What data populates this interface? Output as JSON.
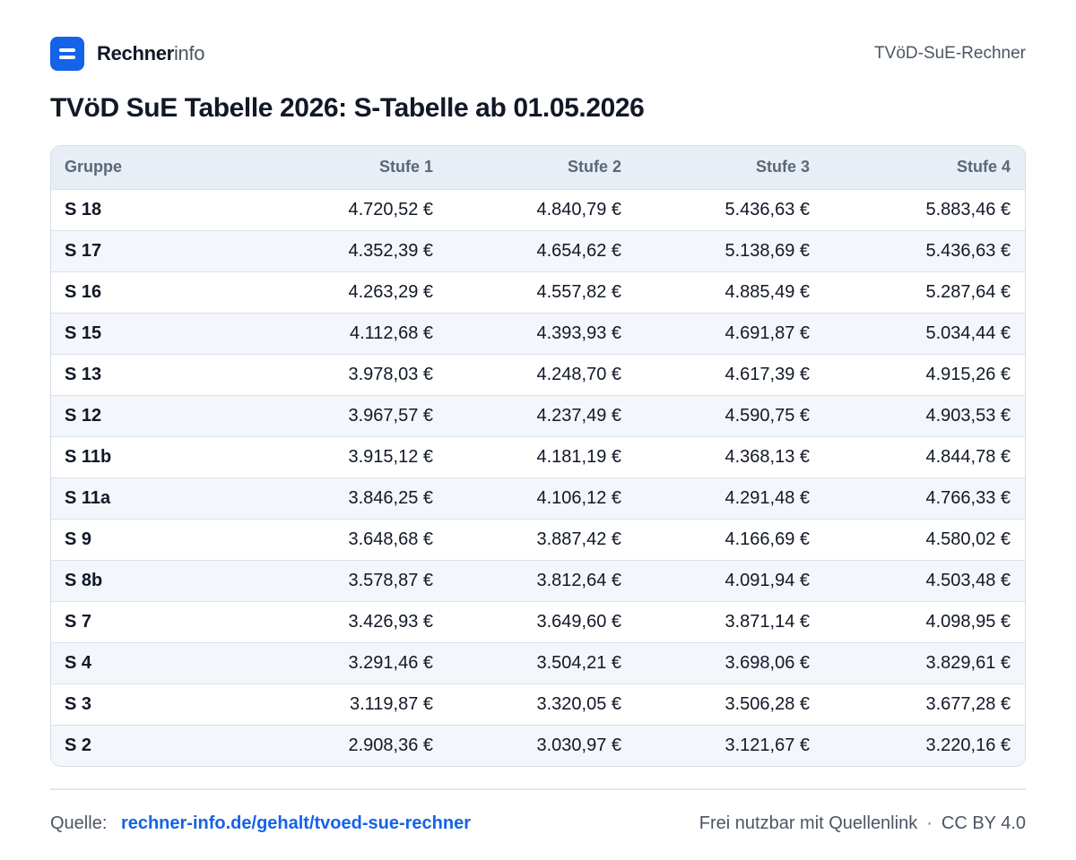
{
  "brand": {
    "name_bold": "Rechner",
    "name_light": "info"
  },
  "header_right": "TVöD-SuE-Rechner",
  "page_title": "TVöD SuE Tabelle 2026: S-Tabelle  ab 01.05.2026",
  "table": {
    "columns": [
      "Gruppe",
      "Stufe 1",
      "Stufe 2",
      "Stufe 3",
      "Stufe 4"
    ],
    "rows": [
      [
        "S 18",
        "4.720,52 €",
        "4.840,79 €",
        "5.436,63 €",
        "5.883,46 €"
      ],
      [
        "S 17",
        "4.352,39 €",
        "4.654,62 €",
        "5.138,69 €",
        "5.436,63 €"
      ],
      [
        "S 16",
        "4.263,29 €",
        "4.557,82 €",
        "4.885,49 €",
        "5.287,64 €"
      ],
      [
        "S 15",
        "4.112,68 €",
        "4.393,93 €",
        "4.691,87 €",
        "5.034,44 €"
      ],
      [
        "S 13",
        "3.978,03 €",
        "4.248,70 €",
        "4.617,39 €",
        "4.915,26 €"
      ],
      [
        "S 12",
        "3.967,57 €",
        "4.237,49 €",
        "4.590,75 €",
        "4.903,53 €"
      ],
      [
        "S 11b",
        "3.915,12 €",
        "4.181,19 €",
        "4.368,13 €",
        "4.844,78 €"
      ],
      [
        "S 11a",
        "3.846,25 €",
        "4.106,12 €",
        "4.291,48 €",
        "4.766,33 €"
      ],
      [
        "S 9",
        "3.648,68 €",
        "3.887,42 €",
        "4.166,69 €",
        "4.580,02 €"
      ],
      [
        "S 8b",
        "3.578,87 €",
        "3.812,64 €",
        "4.091,94 €",
        "4.503,48 €"
      ],
      [
        "S 7",
        "3.426,93 €",
        "3.649,60 €",
        "3.871,14 €",
        "4.098,95 €"
      ],
      [
        "S 4",
        "3.291,46 €",
        "3.504,21 €",
        "3.698,06 €",
        "3.829,61 €"
      ],
      [
        "S 3",
        "3.119,87 €",
        "3.320,05 €",
        "3.506,28 €",
        "3.677,28 €"
      ],
      [
        "S 2",
        "2.908,36 €",
        "3.030,97 €",
        "3.121,67 €",
        "3.220,16 €"
      ]
    ]
  },
  "footer": {
    "source_label": "Quelle:",
    "source_link": "rechner-info.de/gehalt/tvoed-sue-rechner",
    "license_text": "Frei nutzbar mit Quellenlink",
    "separator": "·",
    "license": "CC BY 4.0"
  },
  "colors": {
    "accent": "#1463e8",
    "header_bg": "#e8eef6",
    "zebra": "#f3f6fb"
  },
  "icons": {
    "logo": "menu-lines-icon"
  }
}
